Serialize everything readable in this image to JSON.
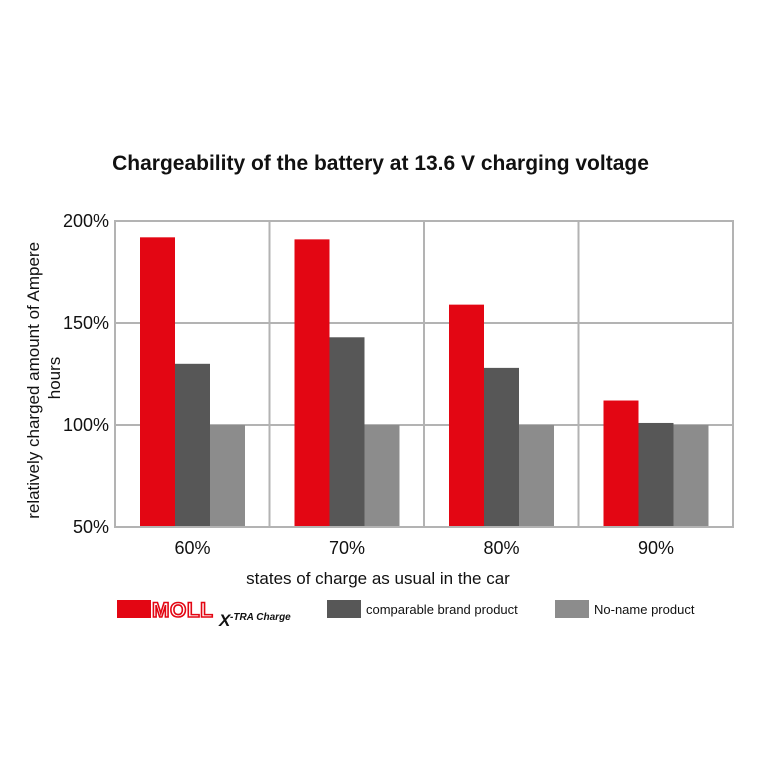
{
  "chart_data": {
    "type": "bar",
    "title": "Chargeability of the battery at 13.6 V charging voltage",
    "xlabel": "states of charge as usual in the car",
    "ylabel": "relatively charged amount of Ampere hours",
    "ylabel_lines": [
      "relatively charged amount of Ampere",
      "hours"
    ],
    "categories": [
      "60%",
      "70%",
      "80%",
      "90%"
    ],
    "ylim": [
      50,
      200
    ],
    "yticks": [
      50,
      100,
      150,
      200
    ],
    "ytick_labels": [
      "50%",
      "100%",
      "150%",
      "200%"
    ],
    "grid": true,
    "legend_position": "bottom",
    "series": [
      {
        "name": "MOLL X-TRA Charge",
        "color": "#e30613",
        "values": [
          192,
          191,
          159,
          112
        ]
      },
      {
        "name": "comparable brand product",
        "color": "#575757",
        "values": [
          130,
          143,
          128,
          101
        ]
      },
      {
        "name": "No-name product",
        "color": "#8c8c8c",
        "values": [
          100,
          100,
          100,
          100
        ]
      }
    ]
  },
  "legend": {
    "brand_logo_text": "MOLL",
    "brand_sub_text": "X-TRA Charge",
    "items": [
      "comparable brand product",
      "No-name product"
    ]
  },
  "colors": {
    "grid": "#b3b3b3",
    "brand_red": "#e30613"
  }
}
